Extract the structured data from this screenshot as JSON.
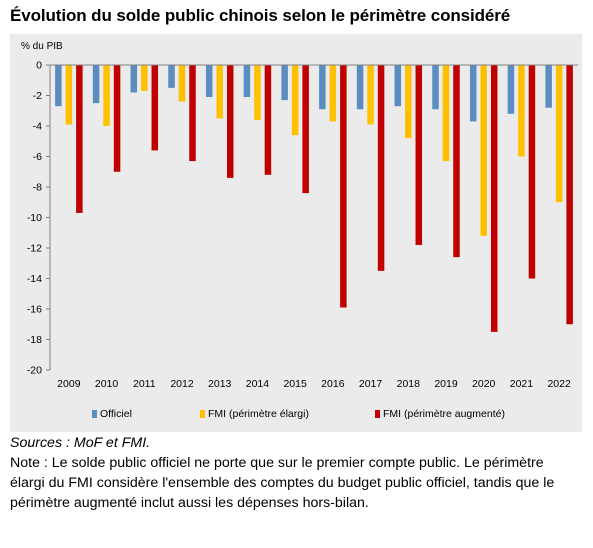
{
  "title": "Évolution du solde public chinois selon le périmètre considéré",
  "sources": "Sources : MoF et FMI.",
  "note": "Note : Le solde public officiel ne porte que sur le premier compte public. Le périmètre élargi du FMI considère l'ensemble des comptes du budget public officiel, tandis que le périmètre augmenté inclut aussi les dépenses hors-bilan.",
  "chart_data": {
    "type": "bar",
    "unit_label": "% du PIB",
    "categories": [
      "2009",
      "2010",
      "2011",
      "2012",
      "2013",
      "2014",
      "2015",
      "2016",
      "2017",
      "2018",
      "2019",
      "2020",
      "2021",
      "2022"
    ],
    "series": [
      {
        "name": "Officiel",
        "color": "#5b8dc0",
        "values": [
          -2.7,
          -2.5,
          -1.8,
          -1.5,
          -2.1,
          -2.1,
          -2.3,
          -2.9,
          -2.9,
          -2.7,
          -2.9,
          -3.7,
          -3.2,
          -2.8
        ]
      },
      {
        "name": "FMI (périmètre élargi)",
        "color": "#ffc000",
        "values": [
          -3.9,
          -4.0,
          -1.7,
          -2.4,
          -3.5,
          -3.6,
          -4.6,
          -3.7,
          -3.9,
          -4.8,
          -6.3,
          -11.2,
          -6.0,
          -9.0
        ]
      },
      {
        "name": "FMI (périmètre augmenté)",
        "color": "#c00000",
        "values": [
          -9.7,
          -7.0,
          -5.6,
          -6.3,
          -7.4,
          -7.2,
          -8.4,
          -15.9,
          -13.5,
          -11.8,
          -12.6,
          -17.5,
          -14.0,
          -17.0
        ]
      }
    ],
    "yticks": [
      0,
      -2,
      -4,
      -6,
      -8,
      -10,
      -12,
      -14,
      -16,
      -18,
      -20
    ],
    "ylim": [
      -20,
      0
    ],
    "grid": false,
    "legend": "bottom"
  }
}
